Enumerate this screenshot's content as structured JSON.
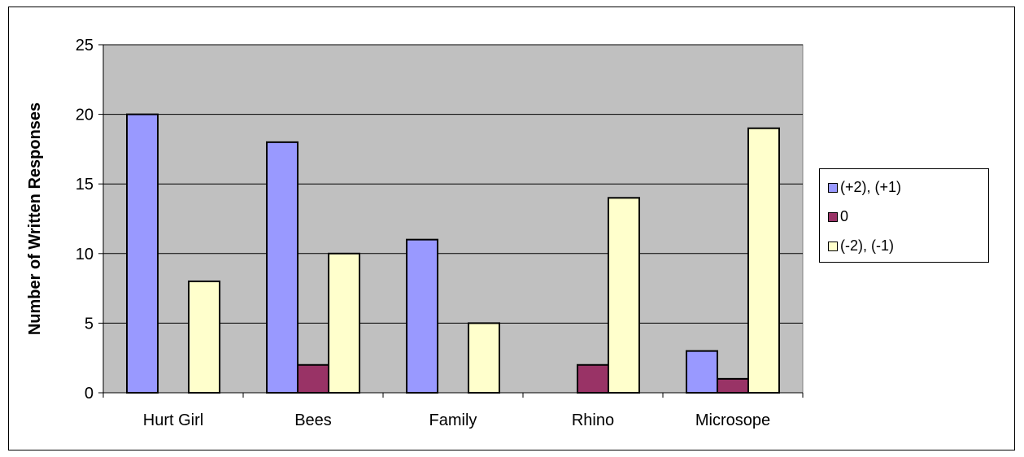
{
  "chart_data": {
    "type": "bar",
    "title": "",
    "xlabel": "",
    "ylabel": "Number of Written Responses",
    "categories": [
      "Hurt Girl",
      "Bees",
      "Family",
      "Rhino",
      "Microsope"
    ],
    "series": [
      {
        "name": "(+2), (+1)",
        "color": "#9999ff",
        "values": [
          20,
          18,
          11,
          0,
          3
        ]
      },
      {
        "name": "0",
        "color": "#993366",
        "values": [
          0,
          2,
          0,
          2,
          1
        ]
      },
      {
        "name": "(-2), (-1)",
        "color": "#ffffcc",
        "values": [
          8,
          10,
          5,
          14,
          19
        ]
      }
    ],
    "ylim": [
      0,
      25
    ],
    "yticks": [
      0,
      5,
      10,
      15,
      20,
      25
    ],
    "grid": true,
    "plot_background": "#c0c0c0",
    "legend_position": "right"
  }
}
